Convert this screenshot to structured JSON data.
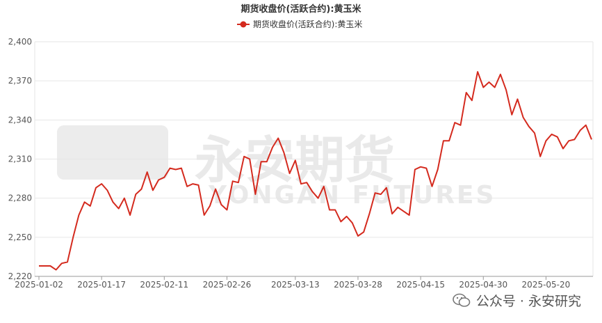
{
  "chart_data": {
    "type": "line",
    "title": "期货收盘价(活跃合约):黄玉米",
    "legend_position": "top-center",
    "xlabel": "",
    "ylabel": "",
    "ylim": [
      2220,
      2400
    ],
    "yticks": [
      "2,220",
      "2,250",
      "2,280",
      "2,310",
      "2,340",
      "2,370",
      "2,400"
    ],
    "xticks": [
      "2025-01-02",
      "2025-01-17",
      "2025-02-11",
      "2025-02-26",
      "2025-03-13",
      "2025-03-28",
      "2025-04-15",
      "2025-04-30",
      "2025-05-20"
    ],
    "grid": true,
    "colors": {
      "line": "#d42a1e",
      "grid": "#e6e6e6",
      "axis": "#999999"
    },
    "series": [
      {
        "name": "期货收盘价(活跃合约):黄玉米",
        "values": [
          2228,
          2228,
          2228,
          2225,
          2230,
          2231,
          2250,
          2267,
          2277,
          2274,
          2288,
          2291,
          2286,
          2277,
          2272,
          2280,
          2267,
          2283,
          2287,
          2300,
          2286,
          2294,
          2296,
          2303,
          2302,
          2303,
          2289,
          2291,
          2290,
          2267,
          2274,
          2287,
          2275,
          2271,
          2293,
          2292,
          2312,
          2310,
          2283,
          2308,
          2308,
          2319,
          2326,
          2315,
          2299,
          2309,
          2291,
          2292,
          2285,
          2280,
          2289,
          2271,
          2271,
          2262,
          2266,
          2261,
          2251,
          2254,
          2268,
          2284,
          2283,
          2288,
          2268,
          2273,
          2270,
          2267,
          2302,
          2304,
          2303,
          2289,
          2302,
          2324,
          2324,
          2338,
          2336,
          2361,
          2355,
          2377,
          2365,
          2369,
          2365,
          2375,
          2363,
          2344,
          2356,
          2342,
          2335,
          2330,
          2312,
          2324,
          2329,
          2327,
          2318,
          2324,
          2325,
          2332,
          2336,
          2325
        ]
      }
    ]
  },
  "watermark": {
    "cn": "永安期货",
    "en": "YONGAN FUTURES"
  },
  "footer": {
    "label": "公众号 · 永安研究",
    "icon": "wechat-icon"
  }
}
